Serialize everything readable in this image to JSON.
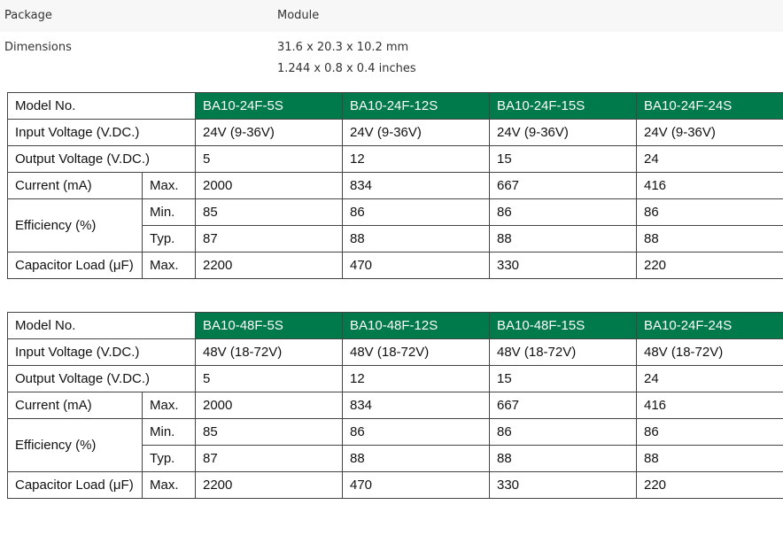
{
  "specs": {
    "package": {
      "label": "Package",
      "value": "Module"
    },
    "dimensions": {
      "label": "Dimensions",
      "value_mm": "31.6 x 20.3 x 10.2 mm",
      "value_in": "1.244 x 0.8 x 0.4 inches"
    }
  },
  "header_color": "#007a4a",
  "row_labels": {
    "model": "Model No.",
    "input": "Input Voltage (V.DC.)",
    "output": "Output Voltage (V.DC.)",
    "current": "Current (mA)",
    "efficiency": "Efficiency (%)",
    "capacitor": "Capacitor Load (μF)",
    "max": "Max.",
    "min": "Min.",
    "typ": "Typ."
  },
  "tables": [
    {
      "models": [
        "BA10-24F-5S",
        "BA10-24F-12S",
        "BA10-24F-15S",
        "BA10-24F-24S"
      ],
      "input": [
        "24V (9-36V)",
        "24V (9-36V)",
        "24V (9-36V)",
        "24V (9-36V)"
      ],
      "output": [
        "5",
        "12",
        "15",
        "24"
      ],
      "current_max": [
        "2000",
        "834",
        "667",
        "416"
      ],
      "eff_min": [
        "85",
        "86",
        "86",
        "86"
      ],
      "eff_typ": [
        "87",
        "88",
        "88",
        "88"
      ],
      "cap_max": [
        "2200",
        "470",
        "330",
        "220"
      ]
    },
    {
      "models": [
        "BA10-48F-5S",
        "BA10-48F-12S",
        "BA10-48F-15S",
        "BA10-24F-24S"
      ],
      "input": [
        "48V (18-72V)",
        "48V (18-72V)",
        "48V (18-72V)",
        "48V (18-72V)"
      ],
      "output": [
        "5",
        "12",
        "15",
        "24"
      ],
      "current_max": [
        "2000",
        "834",
        "667",
        "416"
      ],
      "eff_min": [
        "85",
        "86",
        "86",
        "86"
      ],
      "eff_typ": [
        "87",
        "88",
        "88",
        "88"
      ],
      "cap_max": [
        "2200",
        "470",
        "330",
        "220"
      ]
    }
  ]
}
